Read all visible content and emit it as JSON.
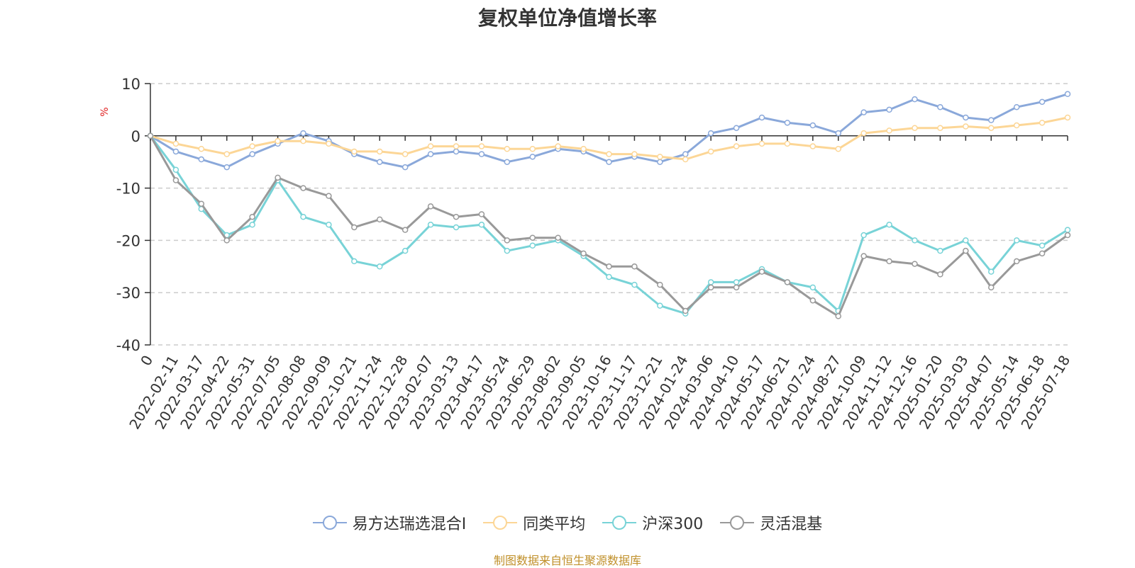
{
  "chart_data": {
    "type": "line",
    "title": "复权单位净值增长率",
    "ylabel": "%",
    "ylim": [
      -40,
      10
    ],
    "yticks": [
      10,
      0,
      -10,
      -20,
      -30,
      -40
    ],
    "grid": true,
    "legend_position": "bottom",
    "x": [
      "0",
      "2022-02-11",
      "2022-03-17",
      "2022-04-22",
      "2022-05-31",
      "2022-07-05",
      "2022-08-08",
      "2022-09-09",
      "2022-10-21",
      "2022-11-24",
      "2022-12-28",
      "2023-02-07",
      "2023-03-13",
      "2023-04-17",
      "2023-05-24",
      "2023-06-29",
      "2023-08-02",
      "2023-09-05",
      "2023-10-16",
      "2023-11-17",
      "2023-12-21",
      "2024-01-24",
      "2024-03-06",
      "2024-04-10",
      "2024-05-17",
      "2024-06-21",
      "2024-07-24",
      "2024-08-27",
      "2024-10-09",
      "2024-11-12",
      "2024-12-16",
      "2025-01-20",
      "2025-03-03",
      "2025-04-07",
      "2025-05-14",
      "2025-06-18",
      "2025-07-18"
    ],
    "series": [
      {
        "name": "易方达瑞选混合I",
        "color": "#8aa8da",
        "values": [
          0,
          -3,
          -4.5,
          -6,
          -3.5,
          -1.5,
          0.5,
          -1,
          -3.5,
          -5,
          -6,
          -3.5,
          -3,
          -3.5,
          -5,
          -4,
          -2.5,
          -3,
          -5,
          -4,
          -5,
          -3.5,
          0.5,
          1.5,
          3.5,
          2.5,
          2,
          0.5,
          4.5,
          5,
          7,
          5.5,
          3.5,
          3,
          5.5,
          6.5,
          8
        ]
      },
      {
        "name": "同类平均",
        "color": "#fcd696",
        "values": [
          0,
          -1.5,
          -2.5,
          -3.5,
          -2,
          -1,
          -1,
          -1.5,
          -3,
          -3,
          -3.5,
          -2,
          -2,
          -2,
          -2.5,
          -2.5,
          -2,
          -2.5,
          -3.5,
          -3.5,
          -4,
          -4.5,
          -3,
          -2,
          -1.5,
          -1.5,
          -2,
          -2.5,
          0.5,
          1,
          1.5,
          1.5,
          1.8,
          1.5,
          2,
          2.5,
          3.5
        ]
      },
      {
        "name": "沪深300",
        "color": "#78d3d7",
        "values": [
          0,
          -6.5,
          -14,
          -19,
          -17,
          -8.5,
          -15.5,
          -17,
          -24,
          -25,
          -22,
          -17,
          -17.5,
          -17,
          -22,
          -21,
          -20,
          -23,
          -27,
          -28.5,
          -32.5,
          -34,
          -28,
          -28,
          -25.5,
          -28,
          -29,
          -33.5,
          -19,
          -17,
          -20,
          -22,
          -20,
          -26,
          -20,
          -21,
          -18
        ]
      },
      {
        "name": "灵活混基",
        "color": "#999999",
        "values": [
          0,
          -8.5,
          -13,
          -20,
          -15.5,
          -8,
          -10,
          -11.5,
          -17.5,
          -16,
          -18,
          -13.5,
          -15.5,
          -15,
          -20,
          -19.5,
          -19.5,
          -22.5,
          -25,
          -25,
          -28.5,
          -33.5,
          -29,
          -29,
          -26,
          -28,
          -31.5,
          -34.5,
          -23,
          -24,
          -24.5,
          -26.5,
          -22,
          -29,
          -24,
          -22.5,
          -19
        ]
      }
    ]
  },
  "footer": "制图数据来自恒生聚源数据库"
}
